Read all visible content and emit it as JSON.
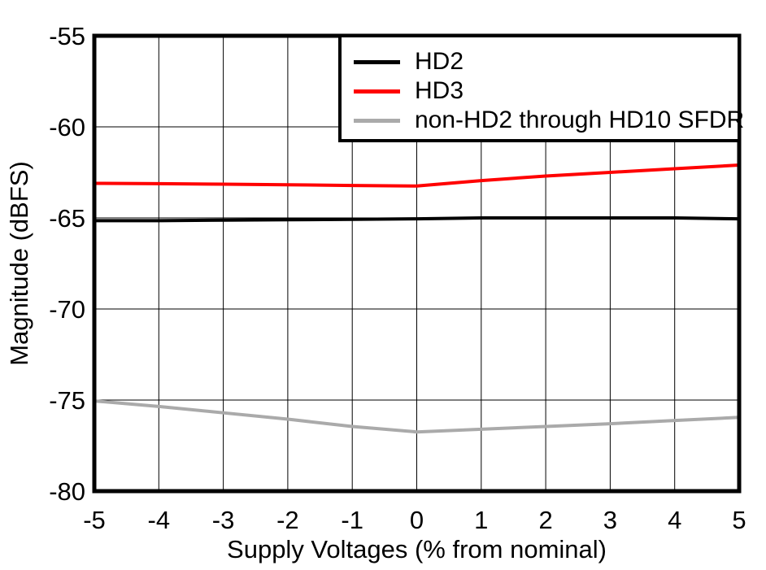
{
  "chart_data": {
    "type": "line",
    "title": "",
    "xlabel": "Supply Voltages (% from nominal)",
    "ylabel": "Magnitude (dBFS)",
    "xlim": [
      -5,
      5
    ],
    "ylim": [
      -80,
      -55
    ],
    "x_ticks": [
      -5,
      -4,
      -3,
      -2,
      -1,
      0,
      1,
      2,
      3,
      4,
      5
    ],
    "y_ticks": [
      -55,
      -60,
      -65,
      -70,
      -75,
      -80
    ],
    "grid": true,
    "legend_position": "top-right",
    "x": [
      -5,
      -4,
      -3,
      -2,
      -1,
      0,
      1,
      2,
      3,
      4,
      5
    ],
    "series": [
      {
        "name": "HD2",
        "color": "#000000",
        "values": [
          -65.15,
          -65.15,
          -65.12,
          -65.1,
          -65.08,
          -65.05,
          -65.0,
          -65.0,
          -65.0,
          -65.0,
          -65.05
        ]
      },
      {
        "name": "HD3",
        "color": "#ff0000",
        "values": [
          -63.1,
          -63.12,
          -63.15,
          -63.18,
          -63.22,
          -63.25,
          -62.95,
          -62.7,
          -62.5,
          -62.3,
          -62.1
        ]
      },
      {
        "name": "non-HD2 through HD10 SFDR",
        "color": "#aaaaaa",
        "values": [
          -75.05,
          -75.35,
          -75.7,
          -76.05,
          -76.45,
          -76.75,
          -76.6,
          -76.45,
          -76.3,
          -76.12,
          -75.95
        ]
      }
    ],
    "style": {
      "grid_color": "#000000",
      "axis_color": "#000000",
      "background": "#ffffff",
      "tick_font_size": 31,
      "label_font_size": 31
    }
  }
}
